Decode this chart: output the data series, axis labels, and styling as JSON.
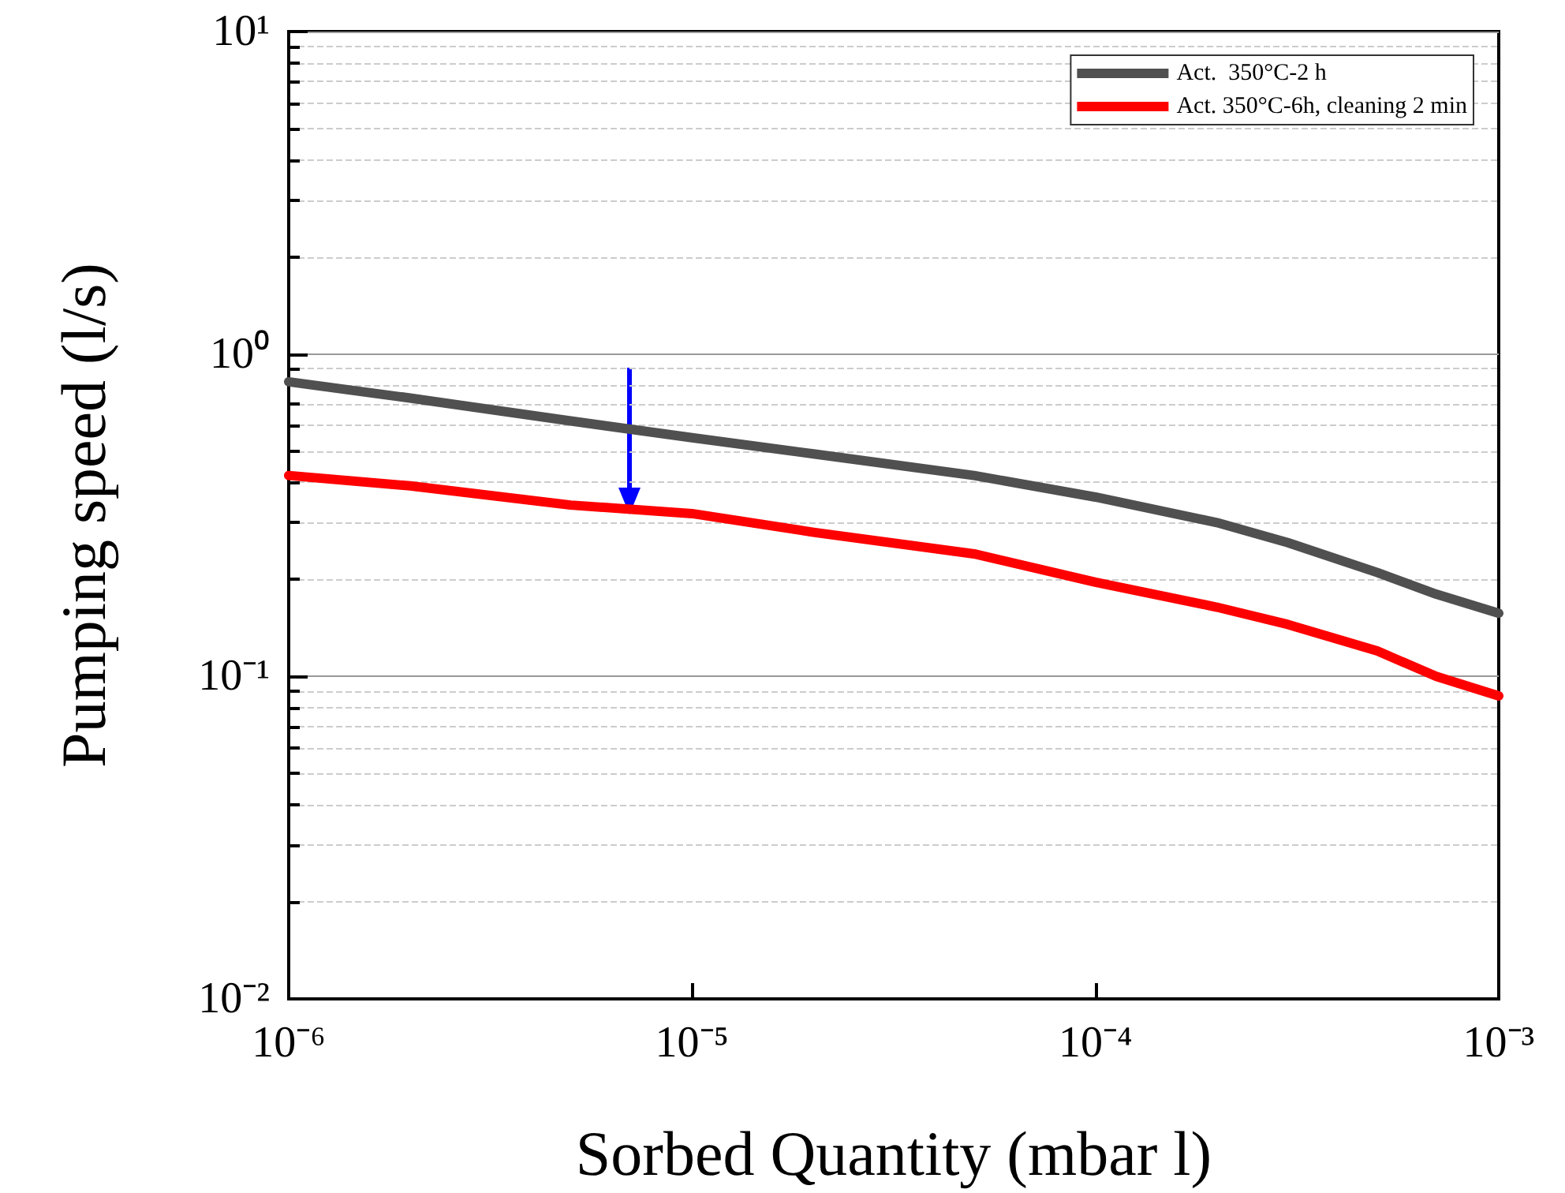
{
  "chart_data": {
    "type": "line",
    "xlabel": "Sorbed Quantity (mbar l)",
    "ylabel": "Pumping speed (l/s)",
    "log": "xy",
    "x": [
      1e-06,
      2e-06,
      5e-06,
      1e-05,
      2e-05,
      5e-05,
      0.0001,
      0.0002,
      0.0003,
      0.0005,
      0.0007,
      0.001
    ],
    "series": [
      {
        "name": "Act.  350°C-2 h",
        "color": "#505050",
        "values": [
          0.82,
          0.73,
          0.62,
          0.55,
          0.49,
          0.42,
          0.36,
          0.3,
          0.26,
          0.21,
          0.18,
          0.157
        ]
      },
      {
        "name": "Act. 350°C-6h, cleaning 2 min",
        "color": "#ff0000",
        "values": [
          0.42,
          0.39,
          0.34,
          0.32,
          0.28,
          0.24,
          0.196,
          0.164,
          0.145,
          0.12,
          0.1,
          0.087
        ]
      }
    ],
    "xlim": [
      1e-06,
      0.001
    ],
    "ylim": [
      0.01,
      10
    ],
    "xticks": [
      {
        "value": 1e-06,
        "label": "10⁻⁶"
      },
      {
        "value": 1e-05,
        "label": "10⁻⁵"
      },
      {
        "value": 0.0001,
        "label": "10⁻⁴"
      },
      {
        "value": 0.001,
        "label": "10⁻³"
      }
    ],
    "yticks": [
      {
        "value": 0.01,
        "label": "10⁻²"
      },
      {
        "value": 0.02,
        "label": null
      },
      {
        "value": 0.03,
        "label": null
      },
      {
        "value": 0.04,
        "label": null
      },
      {
        "value": 0.05,
        "label": null
      },
      {
        "value": 0.06,
        "label": null
      },
      {
        "value": 0.07,
        "label": null
      },
      {
        "value": 0.08,
        "label": null
      },
      {
        "value": 0.09,
        "label": null
      },
      {
        "value": 0.1,
        "label": "10⁻¹"
      },
      {
        "value": 0.2,
        "label": null
      },
      {
        "value": 0.3,
        "label": null
      },
      {
        "value": 0.4,
        "label": null
      },
      {
        "value": 0.5,
        "label": null
      },
      {
        "value": 0.6,
        "label": null
      },
      {
        "value": 0.7,
        "label": null
      },
      {
        "value": 0.8,
        "label": null
      },
      {
        "value": 0.9,
        "label": null
      },
      {
        "value": 1,
        "label": "10⁰"
      },
      {
        "value": 2,
        "label": null
      },
      {
        "value": 3,
        "label": null
      },
      {
        "value": 4,
        "label": null
      },
      {
        "value": 5,
        "label": null
      },
      {
        "value": 6,
        "label": null
      },
      {
        "value": 7,
        "label": null
      },
      {
        "value": 8,
        "label": null
      },
      {
        "value": 9,
        "label": null
      },
      {
        "value": 10,
        "label": "10¹"
      }
    ],
    "grid": "y",
    "legend": "top right",
    "marker": "none",
    "line_style": "solid"
  }
}
